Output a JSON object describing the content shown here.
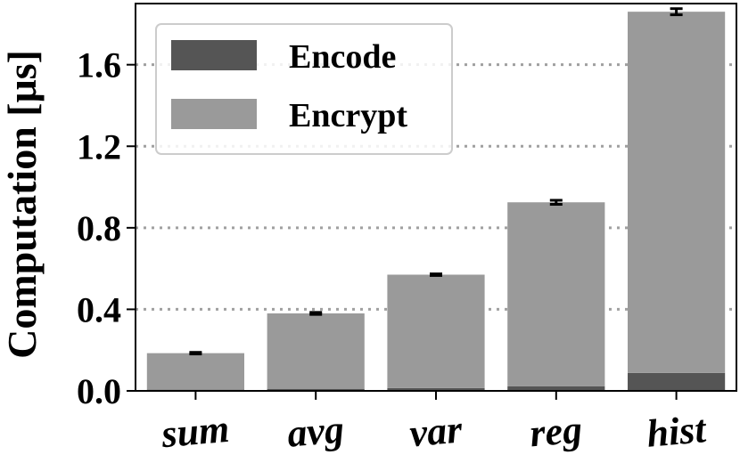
{
  "chart_data": {
    "type": "bar",
    "stacked": true,
    "title": "",
    "xlabel": "",
    "ylabel": "Computation [μs]",
    "categories": [
      "sum",
      "avg",
      "var",
      "reg",
      "hist"
    ],
    "series": [
      {
        "name": "Encode",
        "color": "#555555",
        "values": [
          0.006,
          0.01,
          0.014,
          0.022,
          0.088
        ]
      },
      {
        "name": "Encrypt",
        "color": "#9a9a9a",
        "values": [
          0.179,
          0.37,
          0.556,
          0.903,
          1.772
        ]
      }
    ],
    "error_bars": [
      0.004,
      0.005,
      0.004,
      0.01,
      0.015
    ],
    "ylim": [
      0,
      1.9
    ],
    "yticks": [
      0.0,
      0.4,
      0.8,
      1.2,
      1.6
    ],
    "ytick_labels": [
      "0.0",
      "0.4",
      "0.8",
      "1.2",
      "1.6"
    ],
    "grid": "horizontal-dotted",
    "legend_position": "top-left"
  }
}
